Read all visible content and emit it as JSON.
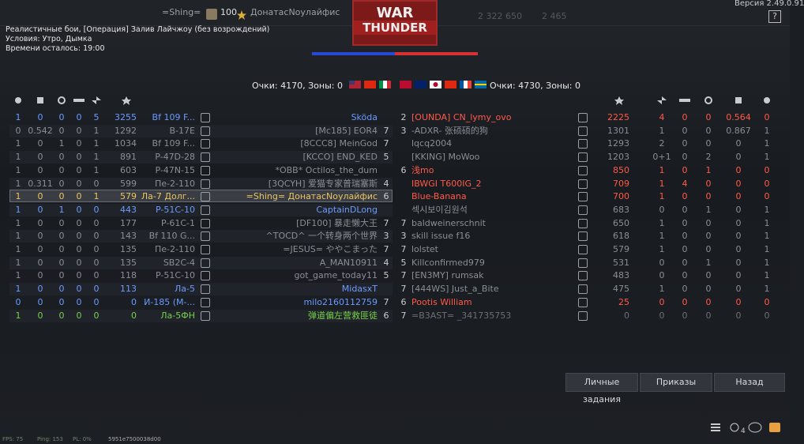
{
  "top_bar": {
    "player_tag": "=Shing=",
    "player_level": "100",
    "player_name": "ДонатасNоулайфис",
    "logo_line1": "WAR",
    "logo_line2": "THUNDER",
    "silver_lions": "2 322 650",
    "research": "2 465",
    "version": "Версия 2.49.0.91",
    "help": "?"
  },
  "battle_info": {
    "mode": "Реалистичные бои, [Операция] Залив Лайчжоу (без возрождений)",
    "conditions": "Условия: Утро, Дымка",
    "time_left": "Времени осталось: 19:00"
  },
  "scores": {
    "left": "Очки: 4170, Зоны: 0",
    "right": "Очки: 4730, Зоны: 0"
  },
  "left_team": {
    "rows": [
      {
        "stats": [
          1,
          0,
          0,
          0,
          5
        ],
        "score": 3255,
        "vehicle": "Bf 109 F...",
        "player": "Sköda",
        "color": "#6b9bff"
      },
      {
        "stats": [
          0,
          0.542,
          0,
          0,
          1
        ],
        "score": 1292,
        "vehicle": "B-17E",
        "player": "[Mc185] EOR4",
        "rank": "7",
        "color": "#8a8f96"
      },
      {
        "stats": [
          1,
          0,
          1,
          0,
          1
        ],
        "score": 1034,
        "vehicle": "Bf 109 F...",
        "player": "[8CCC8] MeinGod",
        "rank": "7",
        "color": "#8a8f96"
      },
      {
        "stats": [
          1,
          0,
          0,
          0,
          1
        ],
        "score": 891,
        "vehicle": "P-47D-28",
        "player": "[KCCO] END_KED",
        "rank": "5",
        "color": "#8a8f96"
      },
      {
        "stats": [
          1,
          0,
          0,
          0,
          1
        ],
        "score": 603,
        "vehicle": "P-47N-15",
        "player": "*OBB* Octilos_the_dum",
        "color": "#8a8f96"
      },
      {
        "stats": [
          1,
          0.311,
          0,
          0,
          0
        ],
        "score": 599,
        "vehicle": "Пе-2-110",
        "player": "[3QCYH] 爱猫专家普瑞塞斯",
        "rank": "4",
        "color": "#8a8f96"
      },
      {
        "stats": [
          1,
          0,
          0,
          0,
          1
        ],
        "score": 579,
        "vehicle": "Ла-7 Долг...",
        "player": "=Shing= ДонатасNоулайфис",
        "rank": "6",
        "color": "#e8c464"
      },
      {
        "stats": [
          1,
          0,
          1,
          0,
          0
        ],
        "score": 443,
        "vehicle": "P-51C-10",
        "player": "CaptainDLong",
        "color": "#6b9bff"
      },
      {
        "stats": [
          1,
          0,
          0,
          0,
          0
        ],
        "score": 177,
        "vehicle": "P-61C-1",
        "player": "[DF100] 暴走懒大王",
        "rank": "7",
        "color": "#8a8f96"
      },
      {
        "stats": [
          1,
          0,
          0,
          0,
          0
        ],
        "score": 143,
        "vehicle": "Bf 110 G...",
        "player": "^TOCD^ 一个转身两个世界",
        "rank": "3",
        "color": "#8a8f96"
      },
      {
        "stats": [
          1,
          0,
          0,
          0,
          0
        ],
        "score": 135,
        "vehicle": "Пе-2-110",
        "player": "=JESUS= ややこまった",
        "rank": "7",
        "color": "#8a8f96"
      },
      {
        "stats": [
          1,
          0,
          0,
          0,
          0
        ],
        "score": 135,
        "vehicle": "SB2C-4",
        "player": "A_MAN10911",
        "rank": "4",
        "color": "#8a8f96"
      },
      {
        "stats": [
          1,
          0,
          0,
          0,
          0
        ],
        "score": 118,
        "vehicle": "P-51C-10",
        "player": "got_game_today11",
        "rank": "5",
        "color": "#8a8f96"
      },
      {
        "stats": [
          1,
          0,
          0,
          0,
          0
        ],
        "score": 113,
        "vehicle": "Ла-5",
        "player": "MidasxT",
        "color": "#6b9bff"
      },
      {
        "stats": [
          0,
          0,
          0,
          0,
          0
        ],
        "score": 0,
        "vehicle": "И-185 (М-...",
        "player": "milo2160112759",
        "rank": "7",
        "color": "#6b9bff"
      },
      {
        "stats": [
          1,
          0,
          0,
          0,
          0
        ],
        "score": 0,
        "vehicle": "Ла-5ФН",
        "player": "弹道偏左营救匪徒",
        "rank": "6",
        "color": "#76d04a"
      }
    ]
  },
  "right_team": {
    "rows": [
      {
        "rank": "2",
        "player": "[OUNDA] CN_lymy_ovo",
        "score": 2225,
        "stats": [
          4,
          0,
          0,
          0.564,
          0
        ],
        "color": "#ff5a4a"
      },
      {
        "rank": "3",
        "player": "-ADXR- 张硕硕的狗",
        "score": 1301,
        "stats": [
          1,
          0,
          0,
          0.867,
          1
        ],
        "color": "#8a8f96"
      },
      {
        "player": "lqcq2004",
        "score": 1293,
        "stats": [
          2,
          0,
          0,
          0,
          1
        ],
        "color": "#8a8f96"
      },
      {
        "player": "[KKING] MoWoo",
        "score": 1203,
        "stats": [
          "0+1",
          0,
          2,
          0,
          1
        ],
        "color": "#8a8f96"
      },
      {
        "rank": "6",
        "player": "浅mo",
        "score": 850,
        "stats": [
          1,
          0,
          1,
          0,
          0
        ],
        "color": "#ff5a4a"
      },
      {
        "player": "IBWGI T600IG_2",
        "score": 709,
        "stats": [
          1,
          4,
          0,
          0,
          0
        ],
        "color": "#ff5a4a"
      },
      {
        "player": "Blue-Banana",
        "score": 700,
        "stats": [
          1,
          0,
          0,
          0,
          0
        ],
        "color": "#ff5a4a"
      },
      {
        "player": "섹시보이김원석",
        "score": 683,
        "stats": [
          0,
          0,
          1,
          0,
          1
        ],
        "color": "#8a8f96"
      },
      {
        "rank": "7",
        "player": "baldweinerschnit",
        "score": 650,
        "stats": [
          1,
          0,
          0,
          0,
          1
        ],
        "color": "#8a8f96"
      },
      {
        "rank": "3",
        "player": "skill issue f16",
        "score": 618,
        "stats": [
          1,
          0,
          0,
          0,
          1
        ],
        "color": "#8a8f96"
      },
      {
        "rank": "7",
        "player": "lolstet",
        "score": 579,
        "stats": [
          1,
          0,
          0,
          0,
          1
        ],
        "color": "#8a8f96"
      },
      {
        "rank": "5",
        "player": "Killconfirmed979",
        "score": 531,
        "stats": [
          0,
          0,
          1,
          0,
          1
        ],
        "color": "#8a8f96"
      },
      {
        "rank": "7",
        "player": "[EN3MY] rumsak",
        "score": 483,
        "stats": [
          0,
          0,
          0,
          0,
          1
        ],
        "color": "#8a8f96"
      },
      {
        "rank": "7",
        "player": "[444WS] Just_a_Bite",
        "score": 475,
        "stats": [
          1,
          0,
          0,
          0,
          1
        ],
        "color": "#8a8f96"
      },
      {
        "rank": "6",
        "player": "Pootis William",
        "score": 25,
        "stats": [
          0,
          0,
          0,
          0,
          0
        ],
        "color": "#ff5a4a"
      },
      {
        "rank": "7",
        "player": "=B3AST= _341735753",
        "score": 0,
        "stats": [
          0,
          0,
          0,
          0,
          0
        ],
        "color": "#6b7076"
      }
    ]
  },
  "buttons": [
    "Личные задания",
    "Приказы",
    "Назад"
  ],
  "chat_count": "4",
  "footer": {
    "fps": "FPS: 75",
    "ping": "Ping: 153",
    "pl": "PL: 0%",
    "session": "5951e7500038d00"
  }
}
